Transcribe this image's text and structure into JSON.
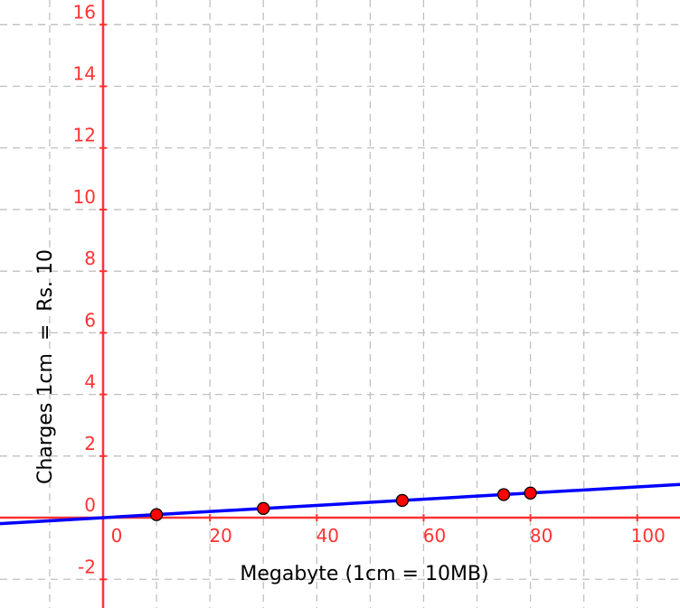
{
  "chart_data": {
    "type": "scatter",
    "title": "",
    "xlabel": "Megabyte (1cm = 10MB)",
    "ylabel": "Charges 1cm  =  Rs. 10",
    "xlim": [
      -19.3,
      108
    ],
    "ylim": [
      -2.93,
      16.8
    ],
    "grid": true,
    "x_ticks": [
      0,
      20,
      40,
      60,
      80,
      100
    ],
    "y_ticks": [
      -2,
      0,
      2,
      4,
      6,
      8,
      10,
      12,
      14,
      16
    ],
    "points": [
      {
        "x": 10,
        "y": 0.1
      },
      {
        "x": 30,
        "y": 0.3
      },
      {
        "x": 56,
        "y": 0.56
      },
      {
        "x": 75,
        "y": 0.75
      },
      {
        "x": 80,
        "y": 0.8
      }
    ],
    "line": {
      "slope": 0.01,
      "intercept": 0
    },
    "colors": {
      "axis": "#ff3333",
      "line": "#0000ff",
      "points": "#ff0000",
      "grid": "#c0c0c0"
    }
  }
}
